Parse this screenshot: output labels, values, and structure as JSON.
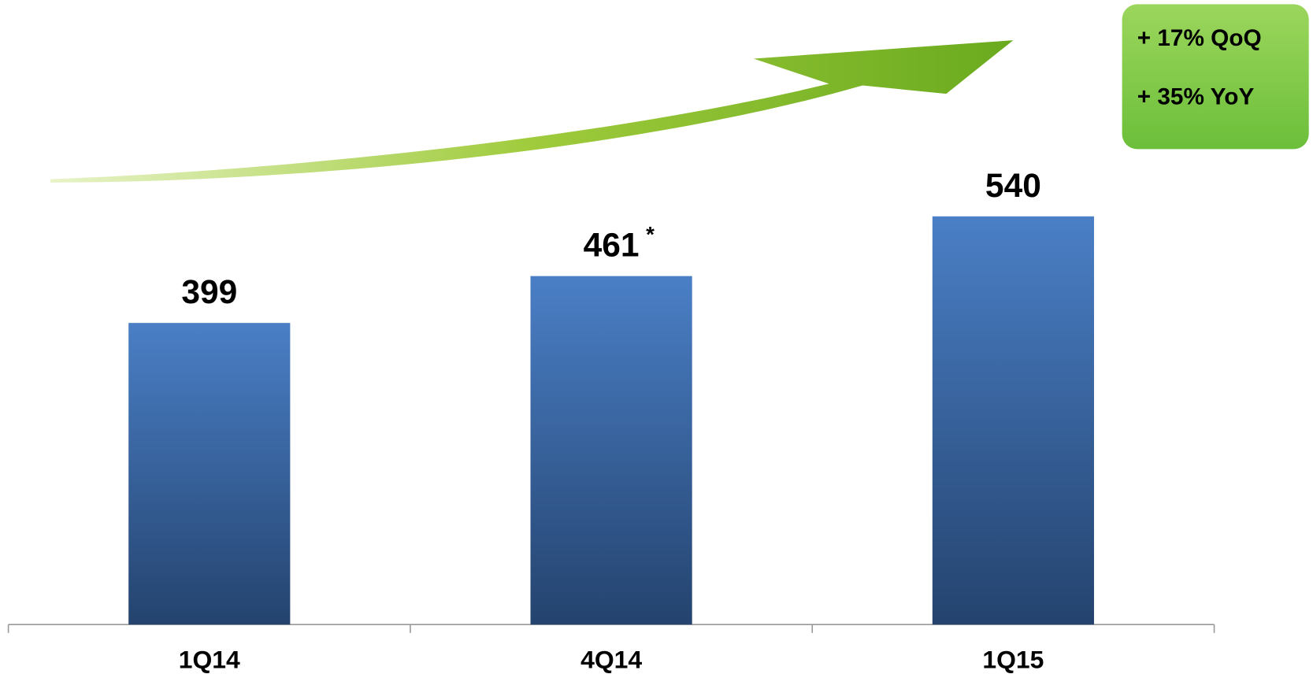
{
  "chart_data": {
    "type": "bar",
    "categories": [
      "1Q14",
      "4Q14",
      "1Q15"
    ],
    "values": [
      399,
      461,
      540
    ],
    "color": "#4a7fc6",
    "marker": "*",
    "growth": [
      "+ 17% QoQ",
      "+ 35% YoY"
    ]
  }
}
